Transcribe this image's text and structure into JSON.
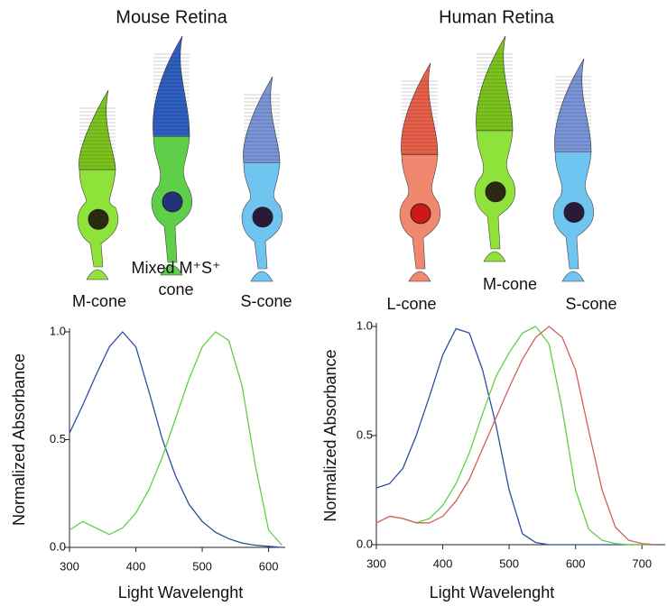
{
  "chart_data": [
    {
      "type": "line",
      "title": "Mouse Retina",
      "cell_labels": [
        [
          "M-cone"
        ],
        [
          "Mixed M⁺S⁺",
          "cone"
        ],
        [
          "S-cone"
        ]
      ],
      "xlabel": "Light Wavelenght",
      "ylabel": "Normalized Absorbance",
      "x": [
        300,
        320,
        340,
        360,
        380,
        400,
        420,
        440,
        460,
        480,
        500,
        520,
        540,
        560,
        580,
        600,
        620
      ],
      "series": [
        {
          "color": "#2b4f9e",
          "values": [
            0.53,
            0.66,
            0.8,
            0.93,
            1.0,
            0.93,
            0.72,
            0.5,
            0.33,
            0.2,
            0.12,
            0.07,
            0.04,
            0.02,
            0.01,
            0.005,
            0
          ]
        },
        {
          "color": "#5fd048",
          "values": [
            0.08,
            0.12,
            0.09,
            0.06,
            0.09,
            0.16,
            0.27,
            0.42,
            0.6,
            0.78,
            0.93,
            1.0,
            0.96,
            0.75,
            0.38,
            0.08,
            0.01
          ]
        }
      ],
      "xlim": [
        300,
        625
      ],
      "ylim": [
        0,
        1
      ],
      "xticks": [
        300,
        400,
        500,
        600
      ],
      "yticks": [
        {
          "value": 0,
          "label": "0.0"
        },
        {
          "value": 0.5,
          "label": "0.5"
        },
        {
          "value": 1,
          "label": "1.0"
        }
      ]
    },
    {
      "type": "line",
      "title": "Human Retina",
      "cell_labels": [
        [
          "L-cone"
        ],
        [
          "M-cone"
        ],
        [
          "S-cone"
        ]
      ],
      "xlabel": "Light Wavelenght",
      "ylabel": "Normalized Absorbance",
      "x": [
        300,
        320,
        340,
        360,
        380,
        400,
        420,
        440,
        460,
        480,
        500,
        520,
        540,
        560,
        580,
        600,
        620,
        640,
        660,
        680,
        700,
        720
      ],
      "series": [
        {
          "color": "#2b4f9e",
          "values": [
            0.26,
            0.28,
            0.35,
            0.5,
            0.68,
            0.87,
            0.99,
            0.97,
            0.8,
            0.55,
            0.25,
            0.05,
            0.01,
            0,
            0,
            0,
            0,
            0,
            0,
            0,
            0,
            0
          ]
        },
        {
          "color": "#5fd048",
          "values": [
            0.1,
            0.13,
            0.12,
            0.1,
            0.12,
            0.18,
            0.28,
            0.42,
            0.6,
            0.77,
            0.88,
            0.97,
            1.0,
            0.92,
            0.62,
            0.25,
            0.07,
            0.02,
            0.005,
            0,
            0,
            0
          ]
        },
        {
          "color": "#d0605a",
          "values": [
            0.1,
            0.13,
            0.12,
            0.1,
            0.1,
            0.13,
            0.2,
            0.3,
            0.44,
            0.58,
            0.72,
            0.85,
            0.95,
            1.0,
            0.95,
            0.8,
            0.52,
            0.25,
            0.08,
            0.02,
            0.005,
            0
          ]
        }
      ],
      "xlim": [
        300,
        735
      ],
      "ylim": [
        0,
        1
      ],
      "xticks": [
        300,
        400,
        500,
        600,
        700
      ],
      "yticks": [
        {
          "value": 0,
          "label": "0.0"
        },
        {
          "value": 0.5,
          "label": "0.5"
        },
        {
          "value": 1,
          "label": "1.0"
        }
      ]
    }
  ]
}
